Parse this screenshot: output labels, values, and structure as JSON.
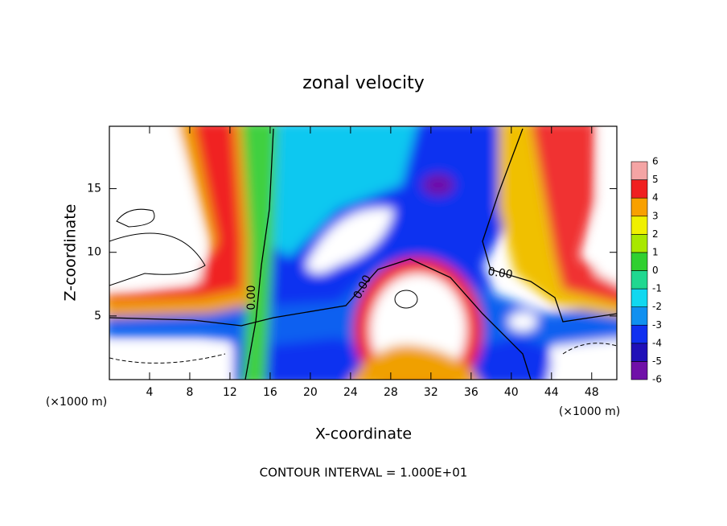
{
  "chart_data": {
    "type": "contour",
    "title": "zonal velocity",
    "x_label": "X-coordinate",
    "y_label": "Z-coordinate",
    "x_unit": "(×1000 m)",
    "footer": "CONTOUR INTERVAL = 1.000E+01",
    "xlim": [
      0,
      50.5
    ],
    "ylim": [
      0,
      19.9
    ],
    "xticks": [
      4,
      8,
      12,
      16,
      20,
      24,
      28,
      32,
      36,
      40,
      44,
      48
    ],
    "yticks": [
      5,
      10,
      15
    ],
    "colorbar": {
      "levels": [
        -6,
        -5,
        -4,
        -3,
        -2,
        -1,
        0,
        1,
        2,
        3,
        4,
        5,
        6
      ],
      "colors": [
        "#7010a8",
        "#2010b8",
        "#1030f0",
        "#1090f0",
        "#10d8f0",
        "#20d890",
        "#30d030",
        "#a8e800",
        "#f0f000",
        "#f8a000",
        "#f02020",
        "#f4a4a4"
      ]
    },
    "contour_labels": [
      {
        "value": 0,
        "label": "0.00"
      },
      {
        "value": 0,
        "label": "0.00"
      },
      {
        "value": 0,
        "label": "0.00"
      }
    ]
  }
}
